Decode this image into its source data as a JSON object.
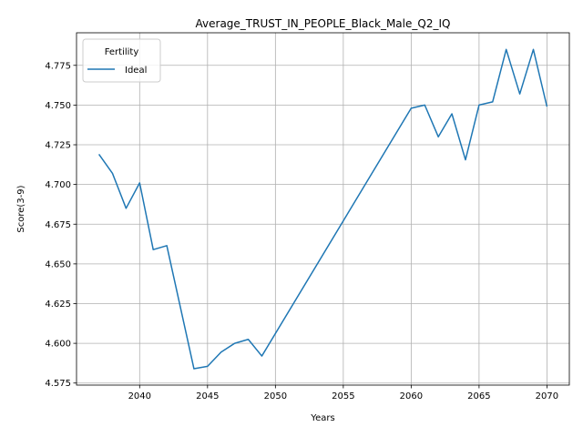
{
  "chart_data": {
    "type": "line",
    "title": "Average_TRUST_IN_PEOPLE_Black_Male_Q2_IQ",
    "xlabel": "Years",
    "ylabel": "Score(3-9)",
    "xlim": [
      2035.35,
      2071.65
    ],
    "ylim": [
      4.5737,
      4.7955
    ],
    "x_ticks": [
      2040,
      2045,
      2050,
      2055,
      2060,
      2065,
      2070
    ],
    "x_tick_labels": [
      "2040",
      "2045",
      "2050",
      "2055",
      "2060",
      "2065",
      "2070"
    ],
    "y_ticks": [
      4.575,
      4.6,
      4.625,
      4.65,
      4.675,
      4.7,
      4.725,
      4.75,
      4.775
    ],
    "y_tick_labels": [
      "4.575",
      "4.600",
      "4.625",
      "4.650",
      "4.675",
      "4.700",
      "4.725",
      "4.750",
      "4.775"
    ],
    "grid": true,
    "legend": {
      "title": "Fertility",
      "position": "top-left"
    },
    "series": [
      {
        "name": "Ideal",
        "color": "#1f77b4",
        "x": [
          2037,
          2038,
          2039,
          2040,
          2041,
          2042,
          2044,
          2045,
          2046,
          2047,
          2048,
          2049,
          2060,
          2061,
          2062,
          2063,
          2064,
          2065,
          2066,
          2067,
          2068,
          2069,
          2070
        ],
        "values": [
          4.719,
          4.707,
          4.685,
          4.701,
          4.659,
          4.6615,
          4.584,
          4.5855,
          4.5945,
          4.6,
          4.6025,
          4.592,
          4.748,
          4.75,
          4.73,
          4.7445,
          4.7155,
          4.75,
          4.752,
          4.785,
          4.757,
          4.785,
          4.749
        ]
      }
    ]
  }
}
